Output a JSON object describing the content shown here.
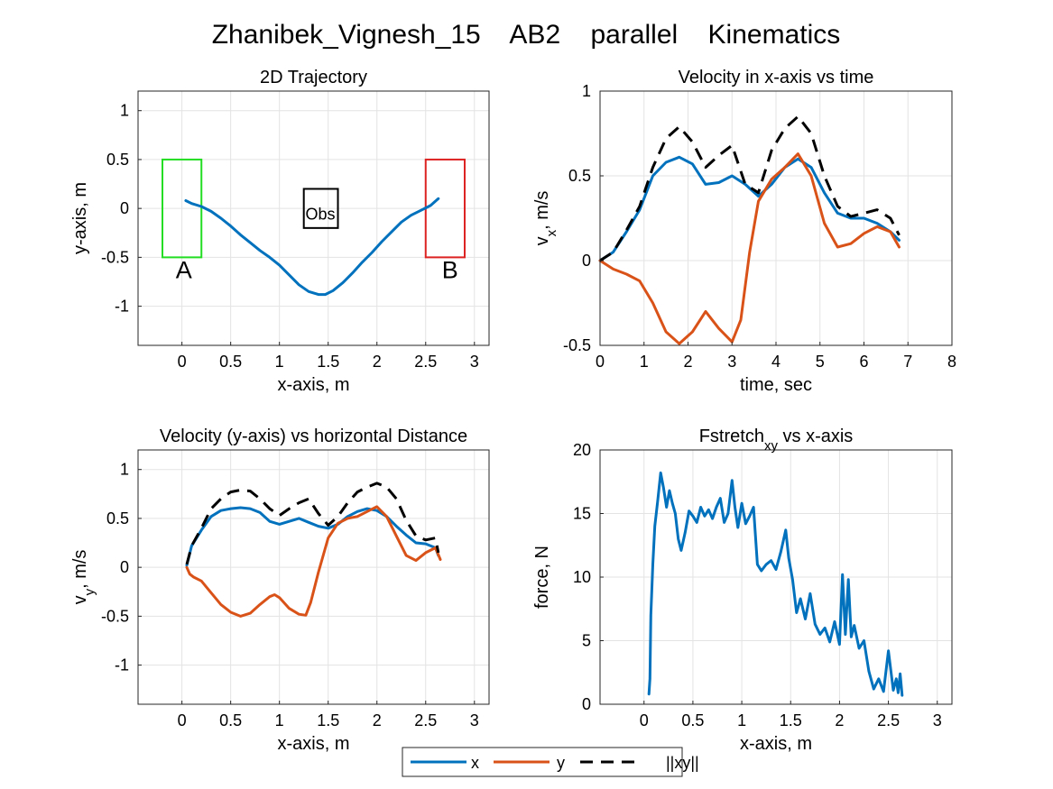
{
  "figure": {
    "title": "Zhanibek_Vignesh_15    AB2    parallel    Kinematics"
  },
  "legend": {
    "entries": [
      {
        "label": "x",
        "color": "#0072BD",
        "dash": "solid"
      },
      {
        "label": "y",
        "color": "#D95319",
        "dash": "solid"
      },
      {
        "label": "||xy||",
        "color": "#000000",
        "dash": "dashed"
      }
    ]
  },
  "colors": {
    "x": "#0072BD",
    "y": "#D95319",
    "norm": "#000000",
    "start_box": "#22DD22",
    "end_box": "#DD2222"
  },
  "chart_data": [
    {
      "type": "line",
      "title": "2D Trajectory",
      "xlabel": "x-axis, m",
      "ylabel": "y-axis, m",
      "xlim": [
        -0.45,
        3.15
      ],
      "ylim": [
        -1.4,
        1.2
      ],
      "xticks": [
        0,
        0.5,
        1,
        1.5,
        2,
        2.5,
        3
      ],
      "xtick_labels": [
        "0",
        "0.5",
        "1",
        "1.5",
        "2",
        "2.5",
        "3"
      ],
      "yticks": [
        1,
        0.5,
        0,
        -0.5,
        -1
      ],
      "ytick_labels": [
        "1",
        "0.5",
        "0",
        "-0.5",
        "-1"
      ],
      "grid": true,
      "series": [
        {
          "color": "#0072BD",
          "dash": "solid",
          "x": [
            0.04,
            0.1,
            0.2,
            0.3,
            0.4,
            0.5,
            0.6,
            0.7,
            0.8,
            0.9,
            1.0,
            1.1,
            1.2,
            1.3,
            1.4,
            1.47,
            1.55,
            1.65,
            1.75,
            1.85,
            1.95,
            2.05,
            2.15,
            2.25,
            2.35,
            2.45,
            2.55,
            2.63
          ],
          "y": [
            0.08,
            0.05,
            0.02,
            -0.03,
            -0.1,
            -0.18,
            -0.27,
            -0.35,
            -0.43,
            -0.5,
            -0.58,
            -0.68,
            -0.78,
            -0.85,
            -0.88,
            -0.88,
            -0.84,
            -0.76,
            -0.66,
            -0.55,
            -0.45,
            -0.34,
            -0.24,
            -0.14,
            -0.07,
            -0.02,
            0.03,
            0.1
          ]
        }
      ],
      "annotations": [
        {
          "text": "A",
          "x": 0.02,
          "y": -0.62
        },
        {
          "text": "B",
          "x": 2.75,
          "y": -0.62
        },
        {
          "text": "Obs",
          "x": 1.42,
          "y": -0.06
        }
      ],
      "rectangles": [
        {
          "name": "start-region",
          "x0": -0.2,
          "x1": 0.2,
          "y0": -0.5,
          "y1": 0.5,
          "color": "#22DD22"
        },
        {
          "name": "end-region",
          "x0": 2.5,
          "x1": 2.9,
          "y0": -0.5,
          "y1": 0.5,
          "color": "#DD2222"
        },
        {
          "name": "obstacle",
          "x0": 1.25,
          "x1": 1.6,
          "y0": -0.2,
          "y1": 0.2,
          "color": "#000000"
        }
      ]
    },
    {
      "type": "line",
      "title": "Velocity in x-axis vs time",
      "xlabel": "time, sec",
      "ylabel": "v",
      "ylabel_sub": "x",
      "ylabel_suffix": ", m/s",
      "xlim": [
        0,
        8
      ],
      "ylim": [
        -0.5,
        1
      ],
      "xticks": [
        0,
        1,
        2,
        3,
        4,
        5,
        6,
        7,
        8
      ],
      "xtick_labels": [
        "0",
        "1",
        "2",
        "3",
        "4",
        "5",
        "6",
        "7",
        "8"
      ],
      "yticks": [
        1,
        0.5,
        0,
        -0.5
      ],
      "ytick_labels": [
        "1",
        "0.5",
        "0",
        "-0.5"
      ],
      "grid": true,
      "series": [
        {
          "color": "#0072BD",
          "dash": "solid",
          "x": [
            0,
            0.3,
            0.6,
            0.9,
            1.2,
            1.5,
            1.8,
            2.1,
            2.4,
            2.7,
            3.0,
            3.3,
            3.6,
            3.9,
            4.2,
            4.5,
            4.8,
            5.1,
            5.4,
            5.7,
            6.0,
            6.3,
            6.6,
            6.8
          ],
          "y": [
            0.0,
            0.05,
            0.17,
            0.3,
            0.5,
            0.58,
            0.61,
            0.57,
            0.45,
            0.46,
            0.5,
            0.45,
            0.38,
            0.45,
            0.55,
            0.6,
            0.55,
            0.4,
            0.28,
            0.25,
            0.25,
            0.22,
            0.17,
            0.12
          ]
        },
        {
          "color": "#D95319",
          "dash": "solid",
          "x": [
            0,
            0.3,
            0.6,
            0.9,
            1.2,
            1.5,
            1.8,
            2.1,
            2.4,
            2.7,
            3.0,
            3.2,
            3.4,
            3.6,
            3.9,
            4.2,
            4.5,
            4.8,
            5.1,
            5.4,
            5.7,
            6.0,
            6.3,
            6.6,
            6.8
          ],
          "y": [
            0.0,
            -0.05,
            -0.08,
            -0.12,
            -0.25,
            -0.42,
            -0.49,
            -0.42,
            -0.3,
            -0.4,
            -0.48,
            -0.35,
            0.05,
            0.35,
            0.48,
            0.55,
            0.63,
            0.5,
            0.22,
            0.08,
            0.1,
            0.16,
            0.2,
            0.17,
            0.08
          ]
        },
        {
          "color": "#000000",
          "dash": "dashed",
          "x": [
            0,
            0.3,
            0.6,
            0.9,
            1.2,
            1.5,
            1.8,
            2.1,
            2.4,
            2.7,
            3.0,
            3.3,
            3.6,
            3.9,
            4.2,
            4.5,
            4.8,
            5.1,
            5.4,
            5.7,
            6.0,
            6.3,
            6.6,
            6.8
          ],
          "y": [
            0.0,
            0.05,
            0.18,
            0.32,
            0.55,
            0.72,
            0.79,
            0.7,
            0.55,
            0.62,
            0.68,
            0.45,
            0.4,
            0.65,
            0.78,
            0.85,
            0.75,
            0.5,
            0.32,
            0.26,
            0.28,
            0.3,
            0.25,
            0.15
          ]
        }
      ]
    },
    {
      "type": "line",
      "title": "Velocity (y-axis) vs horizontal Distance",
      "xlabel": "x-axis, m",
      "ylabel": "v",
      "ylabel_sub": "y",
      "ylabel_suffix": ", m/s",
      "xlim": [
        -0.45,
        3.15
      ],
      "ylim": [
        -1.4,
        1.2
      ],
      "xticks": [
        0,
        0.5,
        1,
        1.5,
        2,
        2.5,
        3
      ],
      "xtick_labels": [
        "0",
        "0.5",
        "1",
        "1.5",
        "2",
        "2.5",
        "3"
      ],
      "yticks": [
        1,
        0.5,
        0,
        -0.5,
        -1
      ],
      "ytick_labels": [
        "1",
        "0.5",
        "0",
        "-0.5",
        "-1"
      ],
      "grid": true,
      "series": [
        {
          "color": "#0072BD",
          "dash": "solid",
          "x": [
            0.05,
            0.1,
            0.2,
            0.3,
            0.4,
            0.5,
            0.6,
            0.7,
            0.8,
            0.9,
            1.0,
            1.1,
            1.2,
            1.3,
            1.4,
            1.5,
            1.6,
            1.7,
            1.8,
            1.9,
            2.0,
            2.1,
            2.2,
            2.3,
            2.4,
            2.5,
            2.6,
            2.63
          ],
          "y": [
            0.02,
            0.22,
            0.38,
            0.52,
            0.58,
            0.6,
            0.61,
            0.6,
            0.56,
            0.47,
            0.44,
            0.47,
            0.5,
            0.46,
            0.42,
            0.4,
            0.44,
            0.52,
            0.57,
            0.6,
            0.58,
            0.52,
            0.42,
            0.33,
            0.25,
            0.24,
            0.2,
            0.12
          ]
        },
        {
          "color": "#D95319",
          "dash": "solid",
          "x": [
            0.05,
            0.08,
            0.12,
            0.2,
            0.3,
            0.4,
            0.5,
            0.6,
            0.7,
            0.8,
            0.9,
            0.95,
            1.0,
            1.1,
            1.2,
            1.27,
            1.32,
            1.4,
            1.5,
            1.6,
            1.7,
            1.8,
            1.9,
            2.0,
            2.1,
            2.2,
            2.3,
            2.4,
            2.5,
            2.6,
            2.65
          ],
          "y": [
            0.0,
            -0.07,
            -0.1,
            -0.14,
            -0.26,
            -0.38,
            -0.46,
            -0.5,
            -0.47,
            -0.38,
            -0.3,
            -0.28,
            -0.31,
            -0.42,
            -0.48,
            -0.49,
            -0.36,
            -0.05,
            0.3,
            0.45,
            0.5,
            0.52,
            0.57,
            0.62,
            0.52,
            0.32,
            0.12,
            0.07,
            0.15,
            0.2,
            0.08
          ]
        },
        {
          "color": "#000000",
          "dash": "dashed",
          "x": [
            0.05,
            0.1,
            0.2,
            0.3,
            0.4,
            0.5,
            0.6,
            0.7,
            0.8,
            0.9,
            1.0,
            1.1,
            1.2,
            1.3,
            1.4,
            1.5,
            1.6,
            1.7,
            1.8,
            1.9,
            2.0,
            2.1,
            2.2,
            2.3,
            2.4,
            2.5,
            2.6,
            2.63
          ],
          "y": [
            0.03,
            0.22,
            0.4,
            0.6,
            0.7,
            0.77,
            0.79,
            0.78,
            0.7,
            0.6,
            0.53,
            0.6,
            0.66,
            0.7,
            0.55,
            0.43,
            0.52,
            0.66,
            0.77,
            0.82,
            0.86,
            0.82,
            0.7,
            0.48,
            0.32,
            0.28,
            0.3,
            0.15
          ]
        }
      ]
    },
    {
      "type": "line",
      "title": "Fstretch",
      "title_sub": "xy",
      "title_suffix": " vs x-axis",
      "xlabel": "x-axis, m",
      "ylabel": "force, N",
      "xlim": [
        -0.45,
        3.15
      ],
      "ylim": [
        0,
        20
      ],
      "xticks": [
        0,
        0.5,
        1,
        1.5,
        2,
        2.5,
        3
      ],
      "xtick_labels": [
        "0",
        "0.5",
        "1",
        "1.5",
        "2",
        "2.5",
        "3"
      ],
      "yticks": [
        20,
        15,
        10,
        5,
        0
      ],
      "ytick_labels": [
        "20",
        "15",
        "10",
        "5",
        "0"
      ],
      "grid": true,
      "series": [
        {
          "color": "#0072BD",
          "dash": "solid",
          "x": [
            0.05,
            0.06,
            0.07,
            0.09,
            0.11,
            0.14,
            0.17,
            0.2,
            0.23,
            0.26,
            0.29,
            0.32,
            0.35,
            0.38,
            0.42,
            0.46,
            0.5,
            0.54,
            0.58,
            0.62,
            0.66,
            0.7,
            0.74,
            0.78,
            0.82,
            0.86,
            0.9,
            0.93,
            0.96,
            1.0,
            1.04,
            1.08,
            1.12,
            1.16,
            1.2,
            1.25,
            1.3,
            1.35,
            1.4,
            1.45,
            1.48,
            1.52,
            1.56,
            1.6,
            1.65,
            1.7,
            1.75,
            1.8,
            1.85,
            1.9,
            1.95,
            2.0,
            2.03,
            2.06,
            2.09,
            2.12,
            2.15,
            2.2,
            2.25,
            2.3,
            2.35,
            2.4,
            2.45,
            2.5,
            2.55,
            2.58,
            2.6,
            2.62,
            2.64
          ],
          "y": [
            0.8,
            2.0,
            7.0,
            11.0,
            14.0,
            16.0,
            18.2,
            17.0,
            15.5,
            16.8,
            15.8,
            15.0,
            13.0,
            12.1,
            13.5,
            15.2,
            14.8,
            14.3,
            15.5,
            14.8,
            15.3,
            14.6,
            15.5,
            16.2,
            14.3,
            15.0,
            17.6,
            15.5,
            13.9,
            15.8,
            14.2,
            14.8,
            15.5,
            11.0,
            10.5,
            11.0,
            11.3,
            10.6,
            12.0,
            13.7,
            11.5,
            9.8,
            7.2,
            8.3,
            6.7,
            8.7,
            6.3,
            5.5,
            6.0,
            4.9,
            6.5,
            4.7,
            10.2,
            5.5,
            9.8,
            5.3,
            6.2,
            4.4,
            5.0,
            2.6,
            1.2,
            2.0,
            1.0,
            4.2,
            1.1,
            2.0,
            0.9,
            2.4,
            0.7
          ]
        }
      ]
    }
  ]
}
